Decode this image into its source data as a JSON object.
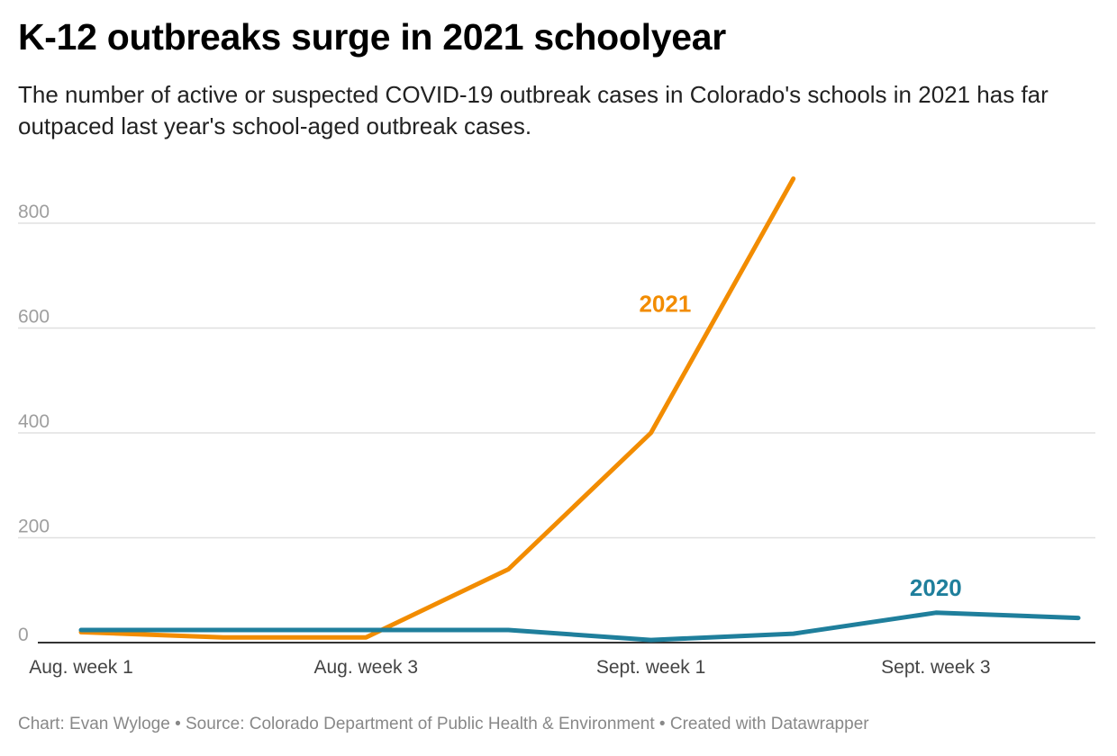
{
  "header": {
    "title": "K-12 outbreaks surge in 2021 schoolyear",
    "subtitle": "The number of active or suspected COVID-19 outbreak cases in Colorado's schools in 2021 has far outpaced last year's school-aged outbreak cases."
  },
  "footer": {
    "credit": "Chart: Evan Wyloge • Source: Colorado Department of Public Health & Environment • Created with Datawrapper"
  },
  "chart_data": {
    "type": "line",
    "x": [
      1,
      2,
      3,
      4,
      5,
      6,
      7,
      8
    ],
    "x_tick_values": [
      1,
      3,
      5,
      7
    ],
    "x_tick_labels": [
      "Aug. week 1",
      "Aug. week 3",
      "Sept. week 1",
      "Sept. week 3"
    ],
    "y_ticks": [
      0,
      200,
      400,
      600,
      800
    ],
    "ylim": [
      0,
      900
    ],
    "grid": true,
    "legend": "direct labels on lines",
    "series": [
      {
        "name": "2021",
        "color": "#f28c00",
        "values": [
          20,
          10,
          10,
          140,
          400,
          885,
          null,
          null
        ]
      },
      {
        "name": "2020",
        "color": "#1f7f9c",
        "values": [
          24,
          24,
          24,
          24,
          5,
          17,
          57,
          47
        ]
      }
    ]
  }
}
